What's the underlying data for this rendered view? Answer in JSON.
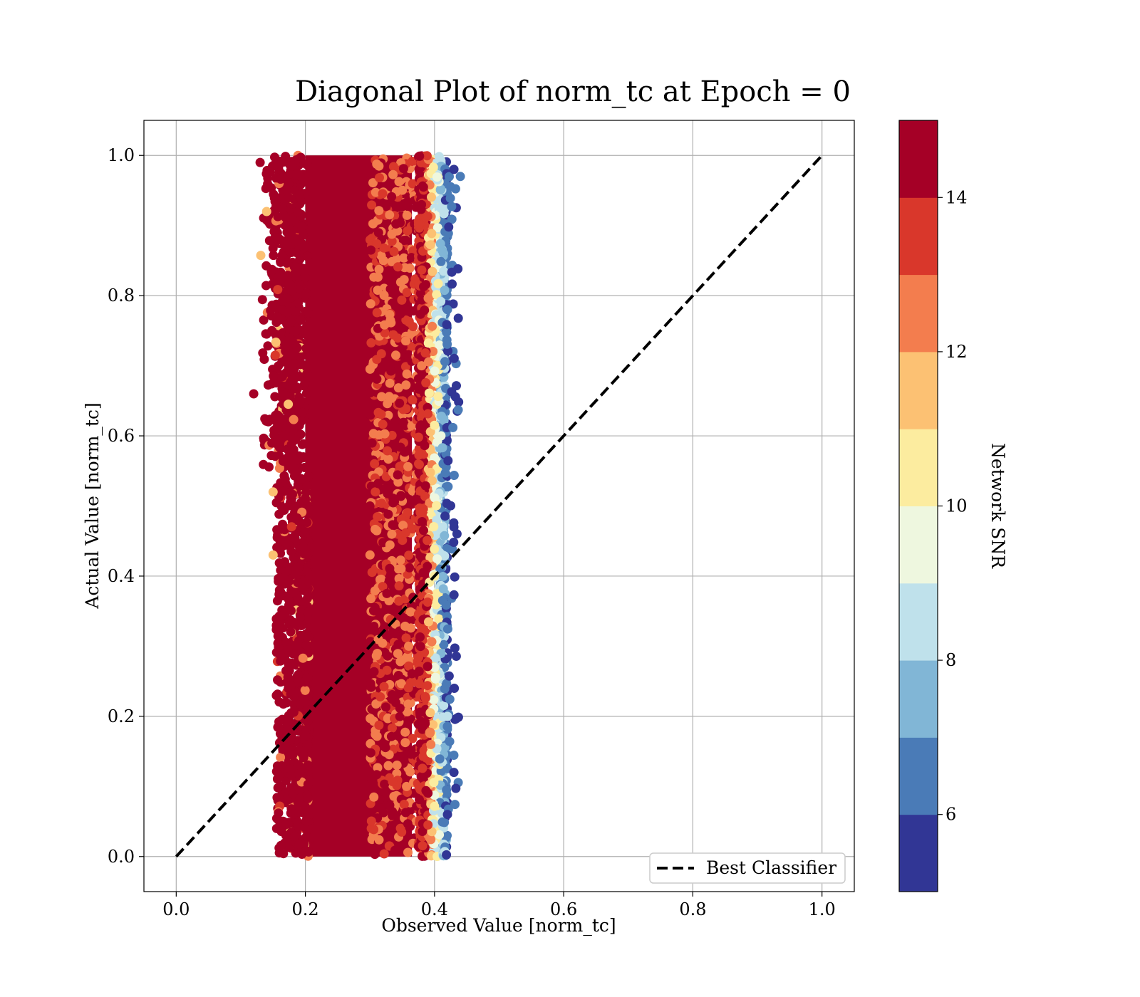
{
  "chart_data": {
    "type": "scatter",
    "title": "Diagonal Plot of norm_tc at Epoch = 0",
    "xlabel": "Observed Value [norm_tc]",
    "ylabel": "Actual Value [norm_tc]",
    "xlim": [
      -0.05,
      1.05
    ],
    "ylim": [
      -0.05,
      1.05
    ],
    "xticks": [
      "0.0",
      "0.2",
      "0.4",
      "0.6",
      "0.8",
      "1.0"
    ],
    "yticks": [
      "0.0",
      "0.2",
      "0.4",
      "0.6",
      "0.8",
      "1.0"
    ],
    "grid": true,
    "legend": {
      "placement": "lower-right",
      "entries": [
        "Best Classifier"
      ]
    },
    "reference_line": {
      "name": "Best Classifier",
      "style": "dashed",
      "color": "#000000",
      "x": [
        0.0,
        1.0
      ],
      "y": [
        0.0,
        1.0
      ]
    },
    "scatter_points": {
      "description_ranges": {
        "x_min": 0.12,
        "x_max": 0.445,
        "y_min": 0.0,
        "y_max": 1.0,
        "dense_core_x": [
          0.2,
          0.37
        ],
        "color_by": "Network SNR"
      },
      "samples": [
        {
          "x": 0.12,
          "y": 0.66,
          "snr": 14.5
        },
        {
          "x": 0.13,
          "y": 0.99,
          "snr": 14.5
        },
        {
          "x": 0.14,
          "y": 0.92,
          "snr": 11.5
        },
        {
          "x": 0.15,
          "y": 0.52,
          "snr": 11.5
        },
        {
          "x": 0.15,
          "y": 0.43,
          "snr": 11.5
        },
        {
          "x": 0.16,
          "y": 0.38,
          "snr": 14.5
        },
        {
          "x": 0.17,
          "y": 0.03,
          "snr": 14.5
        },
        {
          "x": 0.18,
          "y": 0.09,
          "snr": 14.5
        },
        {
          "x": 0.3,
          "y": 0.5,
          "snr": 14.5
        },
        {
          "x": 0.36,
          "y": 0.3,
          "snr": 12.5
        },
        {
          "x": 0.38,
          "y": 0.7,
          "snr": 12.5
        },
        {
          "x": 0.4,
          "y": 0.4,
          "snr": 10.5
        },
        {
          "x": 0.41,
          "y": 0.6,
          "snr": 9.0
        },
        {
          "x": 0.42,
          "y": 0.2,
          "snr": 8.0
        },
        {
          "x": 0.42,
          "y": 0.78,
          "snr": 6.5
        },
        {
          "x": 0.43,
          "y": 0.98,
          "snr": 5.5
        },
        {
          "x": 0.43,
          "y": 0.47,
          "snr": 5.5
        },
        {
          "x": 0.44,
          "y": 0.97,
          "snr": 6.5
        },
        {
          "x": 0.43,
          "y": 0.12,
          "snr": 5.5
        },
        {
          "x": 0.42,
          "y": 0.06,
          "snr": 5.5
        }
      ]
    },
    "colorbar": {
      "label": "Network SNR",
      "range": [
        5,
        15
      ],
      "ticks": [
        "6",
        "8",
        "10",
        "12",
        "14"
      ],
      "tick_values": [
        6,
        8,
        10,
        12,
        14
      ],
      "bins": [
        {
          "from": 5,
          "to": 6,
          "color": "#313695"
        },
        {
          "from": 6,
          "to": 7,
          "color": "#4a7bb7"
        },
        {
          "from": 7,
          "to": 8,
          "color": "#81b6d6"
        },
        {
          "from": 8,
          "to": 9,
          "color": "#bfe1eb"
        },
        {
          "from": 9,
          "to": 10,
          "color": "#eef7df"
        },
        {
          "from": 10,
          "to": 11,
          "color": "#fcec9f"
        },
        {
          "from": 11,
          "to": 12,
          "color": "#fcc173"
        },
        {
          "from": 12,
          "to": 13,
          "color": "#f37d4e"
        },
        {
          "from": 13,
          "to": 14,
          "color": "#d9372b"
        },
        {
          "from": 14,
          "to": 15,
          "color": "#a50026"
        }
      ]
    }
  }
}
